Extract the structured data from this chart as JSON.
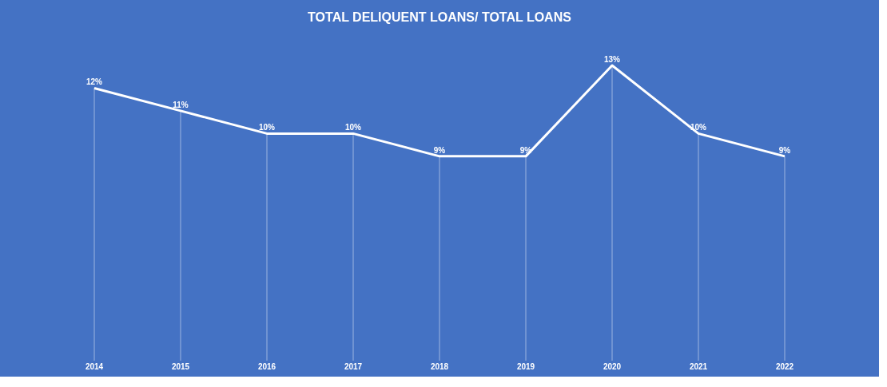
{
  "chart_data": {
    "type": "line",
    "title": "TOTAL DELIQUENT LOANS/ TOTAL LOANS",
    "categories": [
      "2014",
      "2015",
      "2016",
      "2017",
      "2018",
      "2019",
      "2020",
      "2021",
      "2022"
    ],
    "series": [
      {
        "color": "#ffffff",
        "values": [
          12,
          11,
          10,
          10,
          9,
          9,
          13,
          10,
          9
        ],
        "value_labels": [
          "12%",
          "11%",
          "10%",
          "10%",
          "9%",
          "9%",
          "13%",
          "10%",
          "9%"
        ]
      }
    ],
    "marker": "none",
    "line_style": "solid",
    "grid": "x",
    "tick_labels": "x"
  }
}
